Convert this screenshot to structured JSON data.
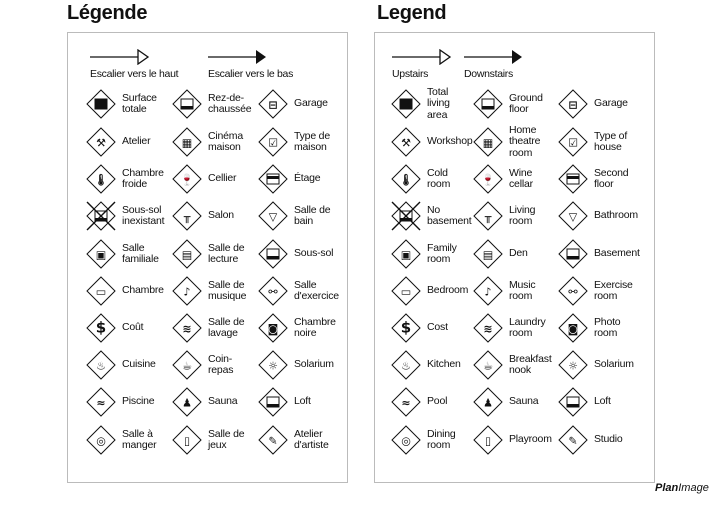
{
  "fr": {
    "title": "Légende",
    "up": "Escalier vers le haut",
    "down": "Escalier vers le bas",
    "items": [
      {
        "label": "Surface\ntotale",
        "icon": "stack-icon"
      },
      {
        "label": "Rez-de-\nchaussée",
        "icon": "ground-floor-icon"
      },
      {
        "label": "Garage",
        "icon": "car-icon"
      },
      {
        "label": "Atelier",
        "icon": "hammer-icon"
      },
      {
        "label": "Cinéma\nmaison",
        "icon": "projector-icon"
      },
      {
        "label": "Type de\nmaison",
        "icon": "checkbox-icon"
      },
      {
        "label": "Chambre\nfroide",
        "icon": "thermometer-icon"
      },
      {
        "label": "Cellier",
        "icon": "wine-icon"
      },
      {
        "label": "Étage",
        "icon": "second-floor-icon"
      },
      {
        "label": "Sous-sol\ninexistant",
        "icon": "no-basement-icon"
      },
      {
        "label": "Salon",
        "icon": "sofa-icon"
      },
      {
        "label": "Salle de\nbain",
        "icon": "toilet-icon"
      },
      {
        "label": "Salle\nfamiliale",
        "icon": "tv-icon"
      },
      {
        "label": "Salle de\nlecture",
        "icon": "book-icon"
      },
      {
        "label": "Sous-sol",
        "icon": "basement-icon"
      },
      {
        "label": "Chambre",
        "icon": "bed-icon"
      },
      {
        "label": "Salle de\nmusique",
        "icon": "music-note-icon"
      },
      {
        "label": "Salle\nd'exercice",
        "icon": "dumbbell-icon"
      },
      {
        "label": "Coût",
        "icon": "dollar-icon"
      },
      {
        "label": "Salle de\nlavage",
        "icon": "laundry-icon"
      },
      {
        "label": "Chambre\nnoire",
        "icon": "camera-icon"
      },
      {
        "label": "Cuisine",
        "icon": "pot-icon"
      },
      {
        "label": "Coin-\nrepas",
        "icon": "cup-icon"
      },
      {
        "label": "Solarium",
        "icon": "sun-icon"
      },
      {
        "label": "Piscine",
        "icon": "pool-icon"
      },
      {
        "label": "Sauna",
        "icon": "sauna-icon"
      },
      {
        "label": "Loft",
        "icon": "loft-icon"
      },
      {
        "label": "Salle à\nmanger",
        "icon": "plate-icon"
      },
      {
        "label": "Salle de\njeux",
        "icon": "game-icon"
      },
      {
        "label": "Atelier\nd'artiste",
        "icon": "palette-icon"
      }
    ]
  },
  "en": {
    "title": "Legend",
    "up": "Upstairs",
    "down": "Downstairs",
    "items": [
      {
        "label": "Total\nliving\narea",
        "icon": "stack-icon"
      },
      {
        "label": "Ground\nfloor",
        "icon": "ground-floor-icon"
      },
      {
        "label": "Garage",
        "icon": "car-icon"
      },
      {
        "label": "Workshop",
        "icon": "hammer-icon"
      },
      {
        "label": "Home\ntheatre\nroom",
        "icon": "projector-icon"
      },
      {
        "label": "Type of\nhouse",
        "icon": "checkbox-icon"
      },
      {
        "label": "Cold\nroom",
        "icon": "thermometer-icon"
      },
      {
        "label": "Wine\ncellar",
        "icon": "wine-icon"
      },
      {
        "label": "Second\nfloor",
        "icon": "second-floor-icon"
      },
      {
        "label": "No\nbasement",
        "icon": "no-basement-icon"
      },
      {
        "label": "Living\nroom",
        "icon": "sofa-icon"
      },
      {
        "label": "Bathroom",
        "icon": "toilet-icon"
      },
      {
        "label": "Family\nroom",
        "icon": "tv-icon"
      },
      {
        "label": "Den",
        "icon": "book-icon"
      },
      {
        "label": "Basement",
        "icon": "basement-icon"
      },
      {
        "label": "Bedroom",
        "icon": "bed-icon"
      },
      {
        "label": "Music\nroom",
        "icon": "music-note-icon"
      },
      {
        "label": "Exercise\nroom",
        "icon": "dumbbell-icon"
      },
      {
        "label": "Cost",
        "icon": "dollar-icon"
      },
      {
        "label": "Laundry\nroom",
        "icon": "laundry-icon"
      },
      {
        "label": "Photo\nroom",
        "icon": "camera-icon"
      },
      {
        "label": "Kitchen",
        "icon": "pot-icon"
      },
      {
        "label": "Breakfast\nnook",
        "icon": "cup-icon"
      },
      {
        "label": "Solarium",
        "icon": "sun-icon"
      },
      {
        "label": "Pool",
        "icon": "pool-icon"
      },
      {
        "label": "Sauna",
        "icon": "sauna-icon"
      },
      {
        "label": "Loft",
        "icon": "loft-icon"
      },
      {
        "label": "Dining\nroom",
        "icon": "plate-icon"
      },
      {
        "label": "Playroom",
        "icon": "game-icon"
      },
      {
        "label": "Studio",
        "icon": "palette-icon"
      }
    ]
  },
  "logo": "PlanImage"
}
